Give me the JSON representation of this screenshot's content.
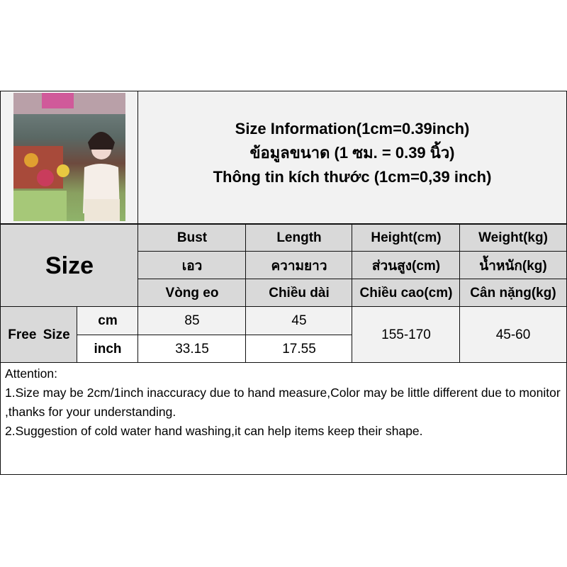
{
  "header": {
    "title_lines": [
      "Size Information(1cm=0.39inch)",
      "ข้อมูลขนาด (1 ซม. = 0.39 นิ้ว)",
      "Thông tin kích thước (1cm=0,39 inch)"
    ]
  },
  "table": {
    "size_label": "Size",
    "columns": [
      {
        "en": "Bust",
        "th": "เอว",
        "vi": "Vòng eo"
      },
      {
        "en": "Length",
        "th": "ความยาว",
        "vi": "Chiều dài"
      },
      {
        "en": "Height(cm)",
        "th": "ส่วนสูง(cm)",
        "vi": "Chiều cao(cm)"
      },
      {
        "en": "Weight(kg)",
        "th": "น้ำหนัก(kg)",
        "vi": "Cân nặng(kg)"
      }
    ],
    "rows": [
      {
        "size": "Free Size",
        "cm": {
          "unit": "cm",
          "bust": "85",
          "length": "45"
        },
        "inch": {
          "unit": "inch",
          "bust": "33.15",
          "length": "17.55"
        },
        "height": "155-170",
        "weight": "45-60"
      }
    ]
  },
  "attention": {
    "heading": "Attention:",
    "lines": [
      "1.Size may be 2cm/1inch inaccuracy due to hand measure,Color may be little different due to monitor ,thanks for your understanding.",
      "2.Suggestion of cold water hand washing,it can help items keep their shape."
    ]
  }
}
